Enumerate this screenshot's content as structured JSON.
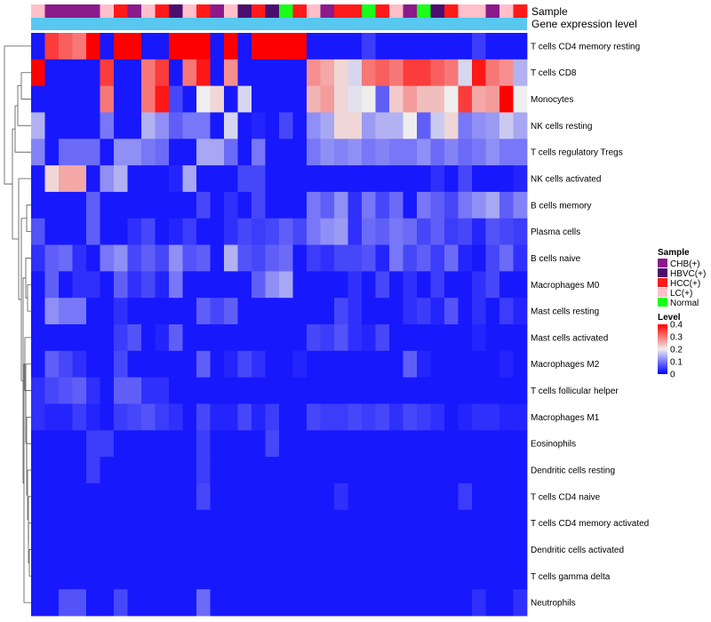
{
  "chart_data": {
    "type": "heatmap",
    "title": "",
    "annotation_labels": {
      "sample": "Sample",
      "expression": "Gene expression level"
    },
    "legends": {
      "sample": {
        "title": "Sample",
        "entries": [
          {
            "label": "CHB(+)",
            "color": "#8b1a8b"
          },
          {
            "label": "HBVC(+)",
            "color": "#4a0f6e"
          },
          {
            "label": "HCC(+)",
            "color": "#ff1a1a"
          },
          {
            "label": "LC(+)",
            "color": "#ffc0cb"
          },
          {
            "label": "Normal",
            "color": "#1aff1a"
          }
        ]
      },
      "level": {
        "title": "Level",
        "ticks": [
          "0.4",
          "0.3",
          "0.2",
          "0.1",
          "0"
        ],
        "range": [
          0,
          0.4
        ]
      }
    },
    "color_scale": {
      "low": "#0000ff",
      "mid": "#eeeeee",
      "high": "#ff0000",
      "domain": [
        0,
        0.2,
        0.4
      ]
    },
    "expression_bar_color": "#58c8f0",
    "sample_groups": [
      "LC",
      "CHB",
      "CHB",
      "CHB",
      "CHB",
      "LC",
      "HCC",
      "CHB",
      "LC",
      "HCC",
      "HBVC",
      "LC",
      "HCC",
      "CHB",
      "LC",
      "HBVC",
      "HCC",
      "HBVC",
      "Normal",
      "HCC",
      "LC",
      "CHB",
      "HCC",
      "HCC",
      "Normal",
      "HCC",
      "LC",
      "CHB",
      "Normal",
      "HBVC",
      "HCC",
      "LC",
      "LC",
      "CHB",
      "LC",
      "HCC"
    ],
    "rows": [
      {
        "label": "T cells CD4 memory resting",
        "values": [
          0.02,
          0.35,
          0.32,
          0.3,
          0.4,
          0.02,
          0.4,
          0.4,
          0.02,
          0.02,
          0.4,
          0.4,
          0.4,
          0.02,
          0.4,
          0.02,
          0.4,
          0.4,
          0.4,
          0.4,
          0.02,
          0.02,
          0.02,
          0.02,
          0.05,
          0.02,
          0.02,
          0.02,
          0.02,
          0.02,
          0.02,
          0.02,
          0.05,
          0.02,
          0.02,
          0.02
        ]
      },
      {
        "label": "T cells CD8",
        "values": [
          0.4,
          0.02,
          0.02,
          0.02,
          0.02,
          0.35,
          0.02,
          0.02,
          0.3,
          0.35,
          0.02,
          0.3,
          0.38,
          0.02,
          0.28,
          0.02,
          0.02,
          0.02,
          0.02,
          0.02,
          0.28,
          0.26,
          0.22,
          0.18,
          0.3,
          0.32,
          0.3,
          0.35,
          0.35,
          0.32,
          0.3,
          0.18,
          0.38,
          0.3,
          0.28,
          0.15
        ]
      },
      {
        "label": "Monocytes",
        "values": [
          0.02,
          0.02,
          0.02,
          0.02,
          0.02,
          0.3,
          0.02,
          0.02,
          0.3,
          0.38,
          0.06,
          0.02,
          0.2,
          0.22,
          0.02,
          0.18,
          0.02,
          0.02,
          0.02,
          0.02,
          0.25,
          0.27,
          0.22,
          0.19,
          0.2,
          0.08,
          0.23,
          0.27,
          0.24,
          0.24,
          0.2,
          0.35,
          0.26,
          0.27,
          0.4,
          0.2
        ]
      },
      {
        "label": "NK cells resting",
        "values": [
          0.15,
          0.02,
          0.02,
          0.02,
          0.02,
          0.1,
          0.02,
          0.02,
          0.15,
          0.12,
          0.08,
          0.1,
          0.1,
          0.02,
          0.18,
          0.02,
          0.03,
          0.02,
          0.06,
          0.02,
          0.12,
          0.14,
          0.22,
          0.22,
          0.13,
          0.15,
          0.15,
          0.2,
          0.08,
          0.17,
          0.22,
          0.1,
          0.12,
          0.13,
          0.17,
          0.14
        ]
      },
      {
        "label": "T cells regulatory  Tregs",
        "values": [
          0.11,
          0.02,
          0.09,
          0.09,
          0.09,
          0.02,
          0.12,
          0.12,
          0.1,
          0.09,
          0.02,
          0.02,
          0.14,
          0.14,
          0.09,
          0.02,
          0.1,
          0.02,
          0.02,
          0.02,
          0.1,
          0.12,
          0.11,
          0.12,
          0.1,
          0.11,
          0.1,
          0.1,
          0.12,
          0.09,
          0.11,
          0.09,
          0.1,
          0.12,
          0.1,
          0.1
        ]
      },
      {
        "label": "NK cells activated",
        "values": [
          0.02,
          0.22,
          0.26,
          0.26,
          0.02,
          0.12,
          0.15,
          0.02,
          0.02,
          0.02,
          0.03,
          0.14,
          0.02,
          0.02,
          0.02,
          0.06,
          0.06,
          0.02,
          0.02,
          0.02,
          0.02,
          0.02,
          0.02,
          0.02,
          0.02,
          0.02,
          0.02,
          0.02,
          0.02,
          0.04,
          0.02,
          0.06,
          0.02,
          0.02,
          0.02,
          0.03
        ]
      },
      {
        "label": "B cells memory",
        "values": [
          0.02,
          0.02,
          0.02,
          0.02,
          0.08,
          0.02,
          0.02,
          0.02,
          0.02,
          0.02,
          0.02,
          0.02,
          0.06,
          0.02,
          0.04,
          0.02,
          0.06,
          0.02,
          0.02,
          0.02,
          0.1,
          0.08,
          0.12,
          0.04,
          0.1,
          0.06,
          0.09,
          0.02,
          0.1,
          0.08,
          0.06,
          0.1,
          0.12,
          0.14,
          0.08,
          0.11
        ]
      },
      {
        "label": "Plasma cells",
        "values": [
          0.07,
          0.02,
          0.02,
          0.02,
          0.08,
          0.02,
          0.02,
          0.04,
          0.06,
          0.02,
          0.03,
          0.05,
          0.02,
          0.02,
          0.04,
          0.06,
          0.05,
          0.06,
          0.08,
          0.06,
          0.1,
          0.12,
          0.13,
          0.04,
          0.09,
          0.08,
          0.1,
          0.09,
          0.06,
          0.08,
          0.05,
          0.06,
          0.03,
          0.07,
          0.06,
          0.05
        ]
      },
      {
        "label": "B cells naive",
        "values": [
          0.04,
          0.08,
          0.09,
          0.04,
          0.02,
          0.1,
          0.12,
          0.06,
          0.08,
          0.06,
          0.12,
          0.07,
          0.08,
          0.02,
          0.15,
          0.07,
          0.06,
          0.08,
          0.09,
          0.02,
          0.05,
          0.04,
          0.06,
          0.06,
          0.07,
          0.03,
          0.1,
          0.06,
          0.08,
          0.05,
          0.09,
          0.03,
          0.02,
          0.06,
          0.09,
          0.04
        ]
      },
      {
        "label": "Macrophages M0",
        "values": [
          0.02,
          0.08,
          0.02,
          0.04,
          0.04,
          0.02,
          0.08,
          0.04,
          0.06,
          0.03,
          0.1,
          0.02,
          0.02,
          0.02,
          0.02,
          0.02,
          0.08,
          0.12,
          0.14,
          0.02,
          0.02,
          0.02,
          0.02,
          0.04,
          0.02,
          0.06,
          0.02,
          0.04,
          0.02,
          0.05,
          0.02,
          0.02,
          0.04,
          0.06,
          0.02,
          0.02
        ]
      },
      {
        "label": "Mast cells resting",
        "values": [
          0.02,
          0.12,
          0.1,
          0.1,
          0.02,
          0.02,
          0.04,
          0.02,
          0.02,
          0.02,
          0.02,
          0.02,
          0.08,
          0.06,
          0.08,
          0.02,
          0.02,
          0.02,
          0.02,
          0.02,
          0.02,
          0.02,
          0.06,
          0.04,
          0.02,
          0.02,
          0.02,
          0.04,
          0.05,
          0.03,
          0.07,
          0.02,
          0.04,
          0.02,
          0.05,
          0.03
        ]
      },
      {
        "label": "Mast cells activated",
        "values": [
          0.02,
          0.02,
          0.02,
          0.02,
          0.02,
          0.02,
          0.05,
          0.07,
          0.02,
          0.03,
          0.08,
          0.02,
          0.02,
          0.02,
          0.02,
          0.02,
          0.02,
          0.02,
          0.02,
          0.02,
          0.06,
          0.05,
          0.07,
          0.04,
          0.03,
          0.06,
          0.02,
          0.02,
          0.02,
          0.02,
          0.02,
          0.02,
          0.03,
          0.02,
          0.02,
          0.02
        ]
      },
      {
        "label": "Macrophages M2",
        "values": [
          0.02,
          0.08,
          0.06,
          0.04,
          0.02,
          0.02,
          0.06,
          0.02,
          0.02,
          0.02,
          0.02,
          0.02,
          0.08,
          0.02,
          0.03,
          0.06,
          0.04,
          0.02,
          0.02,
          0.03,
          0.02,
          0.02,
          0.02,
          0.02,
          0.02,
          0.02,
          0.02,
          0.08,
          0.03,
          0.02,
          0.02,
          0.02,
          0.02,
          0.02,
          0.03,
          0.02
        ]
      },
      {
        "label": "T cells follicular helper",
        "values": [
          0.04,
          0.06,
          0.07,
          0.08,
          0.04,
          0.02,
          0.08,
          0.08,
          0.04,
          0.04,
          0.02,
          0.02,
          0.02,
          0.02,
          0.02,
          0.02,
          0.02,
          0.02,
          0.02,
          0.02,
          0.02,
          0.02,
          0.02,
          0.02,
          0.02,
          0.02,
          0.02,
          0.02,
          0.02,
          0.02,
          0.02,
          0.02,
          0.02,
          0.02,
          0.02,
          0.02
        ]
      },
      {
        "label": "Macrophages M1",
        "values": [
          0.04,
          0.03,
          0.03,
          0.05,
          0.03,
          0.02,
          0.05,
          0.06,
          0.07,
          0.05,
          0.04,
          0.02,
          0.06,
          0.03,
          0.03,
          0.06,
          0.03,
          0.05,
          0.02,
          0.02,
          0.06,
          0.05,
          0.05,
          0.06,
          0.05,
          0.06,
          0.04,
          0.06,
          0.05,
          0.04,
          0.02,
          0.03,
          0.04,
          0.04,
          0.03,
          0.03
        ]
      },
      {
        "label": "Eosinophils",
        "values": [
          0.02,
          0.02,
          0.02,
          0.02,
          0.05,
          0.05,
          0.02,
          0.02,
          0.02,
          0.02,
          0.02,
          0.02,
          0.05,
          0.02,
          0.02,
          0.02,
          0.02,
          0.06,
          0.02,
          0.02,
          0.02,
          0.02,
          0.02,
          0.02,
          0.02,
          0.02,
          0.02,
          0.02,
          0.02,
          0.02,
          0.02,
          0.02,
          0.02,
          0.02,
          0.02,
          0.02
        ]
      },
      {
        "label": "Dendritic cells resting",
        "values": [
          0.02,
          0.02,
          0.02,
          0.02,
          0.05,
          0.02,
          0.02,
          0.02,
          0.02,
          0.02,
          0.02,
          0.02,
          0.05,
          0.02,
          0.02,
          0.02,
          0.02,
          0.02,
          0.02,
          0.02,
          0.02,
          0.02,
          0.02,
          0.02,
          0.02,
          0.02,
          0.02,
          0.02,
          0.02,
          0.02,
          0.02,
          0.02,
          0.02,
          0.02,
          0.02,
          0.02
        ]
      },
      {
        "label": "T cells CD4 naive",
        "values": [
          0.02,
          0.02,
          0.02,
          0.02,
          0.02,
          0.02,
          0.02,
          0.02,
          0.02,
          0.02,
          0.02,
          0.02,
          0.06,
          0.02,
          0.02,
          0.02,
          0.02,
          0.02,
          0.02,
          0.02,
          0.02,
          0.02,
          0.04,
          0.02,
          0.02,
          0.02,
          0.02,
          0.02,
          0.02,
          0.02,
          0.02,
          0.05,
          0.02,
          0.02,
          0.02,
          0.02
        ]
      },
      {
        "label": "T cells CD4 memory activated",
        "values": [
          0.02,
          0.02,
          0.02,
          0.02,
          0.02,
          0.02,
          0.02,
          0.02,
          0.02,
          0.02,
          0.02,
          0.02,
          0.02,
          0.02,
          0.02,
          0.02,
          0.02,
          0.02,
          0.02,
          0.02,
          0.02,
          0.02,
          0.02,
          0.02,
          0.02,
          0.02,
          0.02,
          0.02,
          0.02,
          0.02,
          0.02,
          0.02,
          0.02,
          0.02,
          0.02,
          0.02
        ]
      },
      {
        "label": "Dendritic cells activated",
        "values": [
          0.02,
          0.02,
          0.02,
          0.02,
          0.02,
          0.02,
          0.02,
          0.02,
          0.02,
          0.02,
          0.02,
          0.02,
          0.02,
          0.02,
          0.02,
          0.02,
          0.02,
          0.02,
          0.02,
          0.02,
          0.02,
          0.02,
          0.02,
          0.02,
          0.02,
          0.02,
          0.02,
          0.02,
          0.02,
          0.02,
          0.02,
          0.02,
          0.02,
          0.02,
          0.02,
          0.02
        ]
      },
      {
        "label": "T cells gamma delta",
        "values": [
          0.02,
          0.02,
          0.02,
          0.02,
          0.02,
          0.02,
          0.02,
          0.02,
          0.02,
          0.02,
          0.02,
          0.02,
          0.02,
          0.02,
          0.02,
          0.02,
          0.02,
          0.02,
          0.02,
          0.02,
          0.02,
          0.02,
          0.02,
          0.02,
          0.02,
          0.02,
          0.02,
          0.02,
          0.02,
          0.02,
          0.02,
          0.02,
          0.02,
          0.02,
          0.02,
          0.02
        ]
      },
      {
        "label": "Neutrophils",
        "values": [
          0.02,
          0.02,
          0.07,
          0.07,
          0.02,
          0.02,
          0.06,
          0.02,
          0.02,
          0.02,
          0.02,
          0.02,
          0.09,
          0.02,
          0.02,
          0.02,
          0.02,
          0.02,
          0.02,
          0.02,
          0.02,
          0.02,
          0.02,
          0.02,
          0.02,
          0.02,
          0.02,
          0.02,
          0.02,
          0.02,
          0.02,
          0.02,
          0.04,
          0.02,
          0.02,
          0.04
        ]
      }
    ]
  }
}
